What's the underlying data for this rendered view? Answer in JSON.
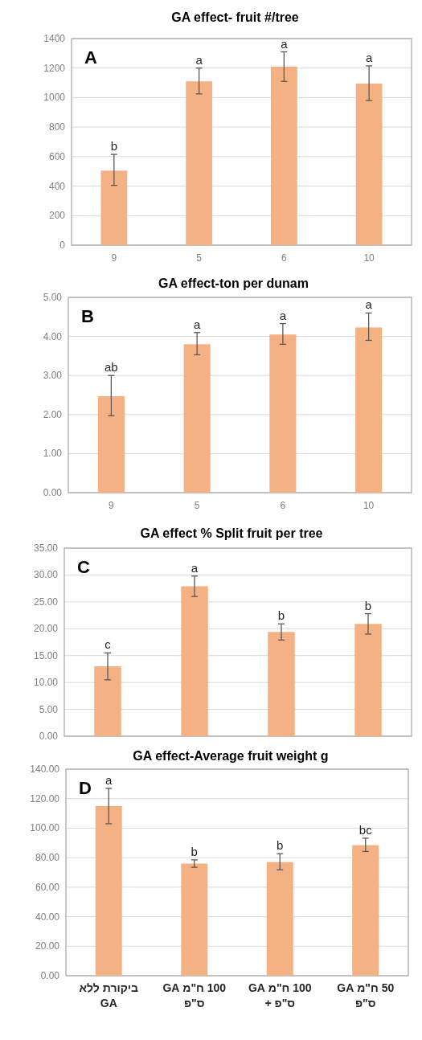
{
  "chart_data": [
    {
      "type": "bar",
      "title": "GA effect- fruit #/tree",
      "categories": [
        "9",
        "5",
        "6",
        "10"
      ],
      "values": [
        505,
        1110,
        1210,
        1095
      ],
      "errors": [
        [
          405,
          615
        ],
        [
          1025,
          1200
        ],
        [
          1110,
          1310
        ],
        [
          980,
          1215
        ]
      ],
      "value_labels": [
        "b",
        "a",
        "a",
        "a"
      ],
      "color": "#f4b183",
      "ylim": [
        0,
        1400
      ],
      "yticks": [
        0,
        200,
        400,
        600,
        800,
        1000,
        1200,
        1400
      ],
      "grid": "y",
      "annotations": [
        "A"
      ]
    },
    {
      "type": "bar",
      "title": "GA effect-ton per dunam",
      "categories": [
        "9",
        "5",
        "6",
        "10"
      ],
      "values": [
        2.47,
        3.8,
        4.05,
        4.23
      ],
      "errors": [
        [
          1.97,
          3.0
        ],
        [
          3.53,
          4.1
        ],
        [
          3.8,
          4.33
        ],
        [
          3.9,
          4.6
        ]
      ],
      "value_labels": [
        "ab",
        "a",
        "a",
        "a"
      ],
      "color": "#f4b183",
      "ylim": [
        0,
        5
      ],
      "yticks": [
        {
          "value": 0,
          "label": "0.00"
        },
        {
          "value": 1,
          "label": "1.00"
        },
        {
          "value": 2,
          "label": "2.00"
        },
        {
          "value": 3,
          "label": "3.00"
        },
        {
          "value": 4,
          "label": "4.00"
        },
        {
          "value": 5,
          "label": "5.00"
        }
      ],
      "grid": "y",
      "annotations": [
        "B"
      ]
    },
    {
      "type": "bar",
      "title": "GA effect %  Split fruit per tree",
      "categories": [
        null,
        null,
        null,
        null
      ],
      "values": [
        13.0,
        27.9,
        19.4,
        20.9
      ],
      "errors": [
        [
          10.5,
          15.5
        ],
        [
          26.0,
          29.8
        ],
        [
          17.9,
          20.9
        ],
        [
          19.0,
          22.8
        ]
      ],
      "value_labels": [
        "c",
        "a",
        "b",
        "b"
      ],
      "color": "#f4b183",
      "ylim": [
        0,
        35
      ],
      "yticks": [
        {
          "value": 0,
          "label": "0.00"
        },
        {
          "value": 5,
          "label": "5.00"
        },
        {
          "value": 10,
          "label": "10.00"
        },
        {
          "value": 15,
          "label": "15.00"
        },
        {
          "value": 20,
          "label": "20.00"
        },
        {
          "value": 25,
          "label": "25.00"
        },
        {
          "value": 30,
          "label": "30.00"
        },
        {
          "value": 35,
          "label": "35.00"
        }
      ],
      "grid": "y",
      "annotations": [
        "C"
      ]
    },
    {
      "type": "bar",
      "title": "GA effect-Average fruit weight g",
      "categories": [
        "ביקורת ללא GA",
        "100 ח\"מ GA ס\"פ",
        "100 ח\"מ GA ס\"פ +",
        "50 ח\"מ GA ס\"פ"
      ],
      "values": [
        115,
        76,
        77,
        88.5
      ],
      "errors": [
        [
          103,
          127
        ],
        [
          73.5,
          78.5
        ],
        [
          71.8,
          82.7
        ],
        [
          84.2,
          93.2
        ]
      ],
      "value_labels": [
        "a",
        "b",
        "b",
        "bc"
      ],
      "color": "#f4b183",
      "ylim": [
        0,
        140
      ],
      "yticks": [
        {
          "value": 0,
          "label": "0.00"
        },
        {
          "value": 20,
          "label": "20.00"
        },
        {
          "value": 40,
          "label": "40.00"
        },
        {
          "value": 60,
          "label": "60.00"
        },
        {
          "value": 80,
          "label": "80.00"
        },
        {
          "value": 100,
          "label": "100.00"
        },
        {
          "value": 120,
          "label": "120.00"
        },
        {
          "value": 140,
          "label": "140.00"
        }
      ],
      "grid": "y",
      "annotations": [
        "D"
      ]
    }
  ]
}
